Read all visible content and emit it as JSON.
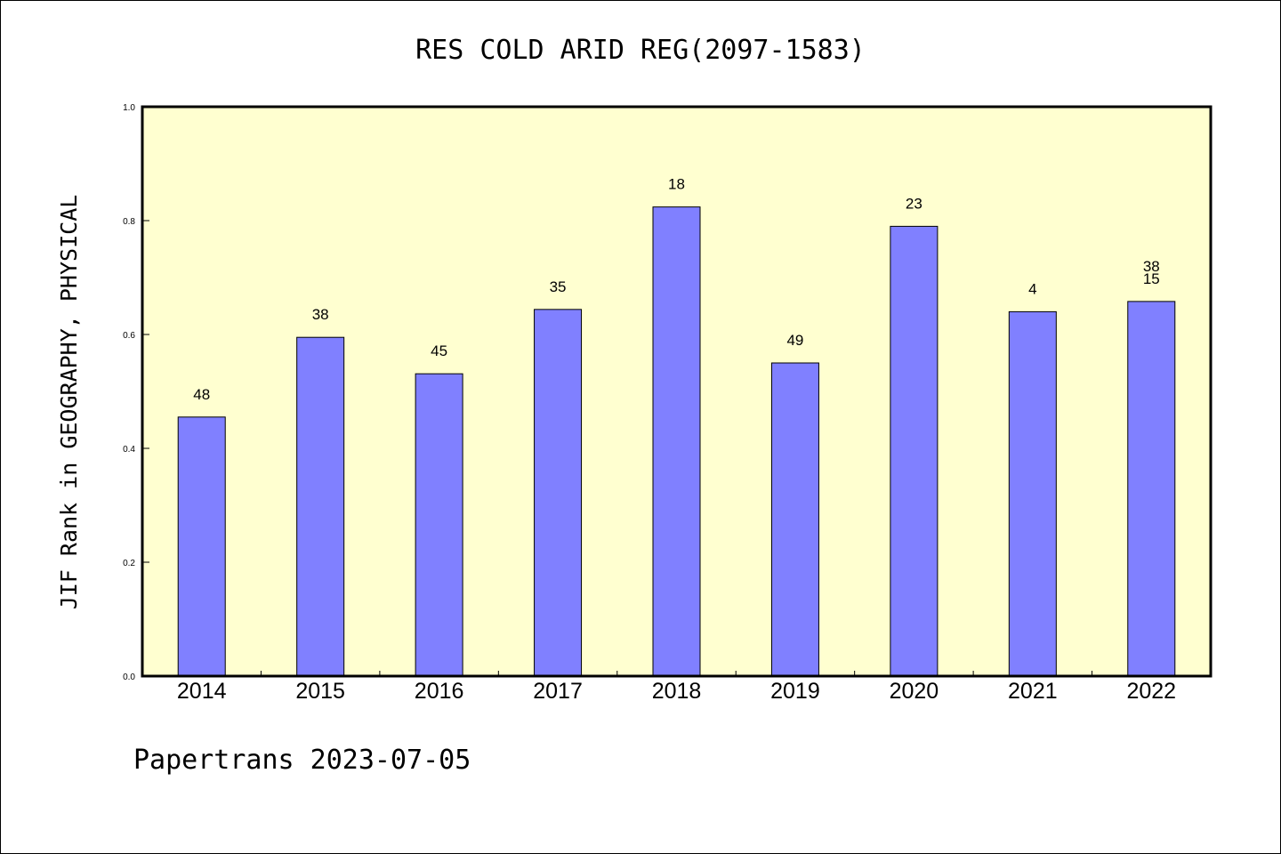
{
  "chart_data": {
    "type": "bar",
    "title": "RES COLD ARID REG(2097-1583)",
    "ylabel": "JIF Rank in GEOGRAPHY, PHYSICAL",
    "xlabel": "",
    "ylim": [
      0.0,
      1.0
    ],
    "yticks": [
      "0.0",
      "0.2",
      "0.4",
      "0.6",
      "0.8",
      "1.0"
    ],
    "categories": [
      "2014",
      "2015",
      "2016",
      "2017",
      "2018",
      "2019",
      "2020",
      "2021",
      "2022"
    ],
    "values": [
      0.455,
      0.595,
      0.531,
      0.644,
      0.824,
      0.55,
      0.79,
      0.64,
      0.658
    ],
    "labels": [
      [
        "48"
      ],
      [
        "38"
      ],
      [
        "45"
      ],
      [
        "35"
      ],
      [
        "18"
      ],
      [
        "49"
      ],
      [
        "23"
      ],
      [
        "4"
      ],
      [
        "38",
        "15"
      ]
    ],
    "grid": false,
    "colors": {
      "bar": "#8080ff",
      "plot_background": "#ffffd0",
      "border": "#000000"
    }
  },
  "footer": "Papertrans 2023-07-05"
}
